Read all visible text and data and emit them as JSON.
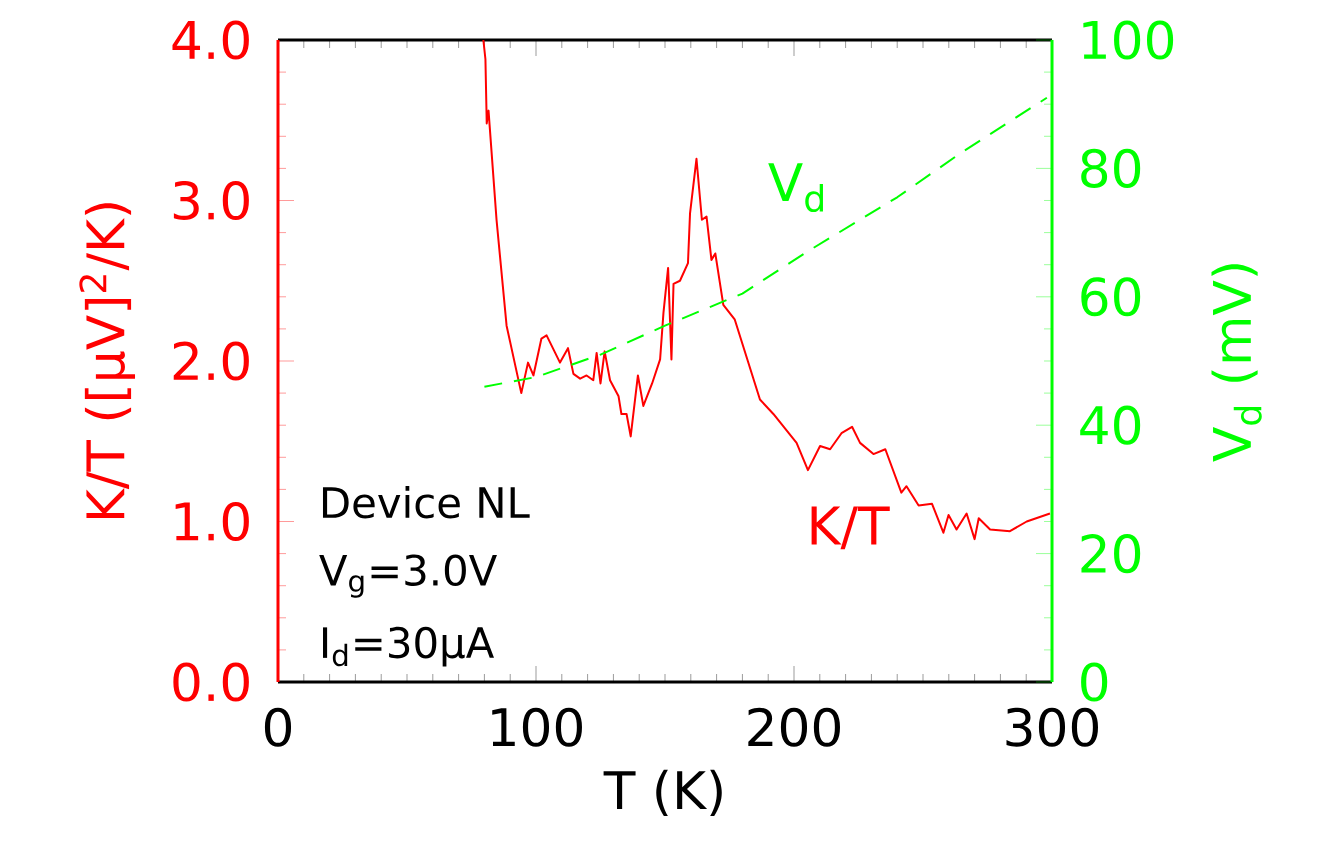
{
  "chart_data": {
    "type": "line",
    "xlabel": "T (K)",
    "ylabel": "K/T ([μV]$^{2}$/K)",
    "y2label": "V$_{d}$ (mV)",
    "xlim": [
      0,
      300
    ],
    "xticks": [
      0,
      100,
      200,
      300
    ],
    "ylim": [
      0,
      4
    ],
    "yticks": [
      {
        "value": 0,
        "label": "0.0"
      },
      {
        "value": 1,
        "label": "1.0"
      },
      {
        "value": 2,
        "label": "2.0"
      },
      {
        "value": 3,
        "label": "3.0"
      },
      {
        "value": 4,
        "label": "4.0"
      }
    ],
    "y2lim": [
      0,
      100
    ],
    "y2ticks": [
      0,
      20,
      40,
      60,
      80,
      100
    ],
    "annotations": [
      "Device  NL",
      "V$_{g}$=3.0V",
      "I$_{d}$=30μA"
    ],
    "series": [
      {
        "name": "K/T",
        "color": "#ff0000",
        "line_style": "solid",
        "x": [
          79.6,
          80.4,
          80.9,
          81.6,
          84.7,
          88.6,
          94.3,
          96.9,
          99.0,
          102.1,
          104.1,
          109.3,
          112.4,
          114.5,
          117.1,
          119.6,
          122.2,
          123.5,
          125.0,
          126.6,
          128.7,
          132.0,
          133.1,
          135.1,
          136.7,
          139.5,
          141.6,
          145.0,
          148.1,
          149.4,
          151.2,
          152.5,
          153.3,
          155.8,
          158.9,
          159.7,
          162.2,
          164.3,
          166.1,
          168.0,
          169.5,
          172.6,
          177.0,
          186.8,
          192.0,
          201.0,
          205.4,
          210.1,
          214.0,
          218.4,
          222.5,
          225.6,
          230.8,
          235.4,
          241.6,
          243.6,
          248.3,
          253.5,
          257.9,
          259.9,
          263.0,
          266.9,
          270.0,
          271.6,
          276.0,
          283.7,
          290.2,
          299.2
        ],
        "values": [
          4.0,
          3.88,
          3.48,
          3.56,
          2.88,
          2.22,
          1.8,
          1.99,
          1.91,
          2.14,
          2.16,
          1.99,
          2.08,
          1.92,
          1.89,
          1.91,
          1.88,
          2.05,
          1.86,
          2.06,
          1.88,
          1.78,
          1.67,
          1.67,
          1.53,
          1.91,
          1.72,
          1.86,
          2.01,
          2.3,
          2.58,
          2.01,
          2.48,
          2.5,
          2.61,
          2.92,
          3.26,
          2.88,
          2.9,
          2.63,
          2.67,
          2.35,
          2.26,
          1.76,
          1.67,
          1.49,
          1.32,
          1.47,
          1.45,
          1.55,
          1.59,
          1.49,
          1.42,
          1.45,
          1.18,
          1.22,
          1.1,
          1.11,
          0.93,
          1.04,
          0.95,
          1.05,
          0.89,
          1.02,
          0.95,
          0.94,
          1.0,
          1.05
        ]
      },
      {
        "name": "V$_{d}$",
        "color": "#00ff00",
        "line_style": "dashed",
        "axis": "y2",
        "x": [
          80,
          100,
          125,
          150,
          180,
          205,
          240,
          265,
          298
        ],
        "values": [
          46,
          47.5,
          51,
          55.5,
          60.5,
          67,
          75.5,
          82.5,
          91
        ]
      }
    ]
  }
}
